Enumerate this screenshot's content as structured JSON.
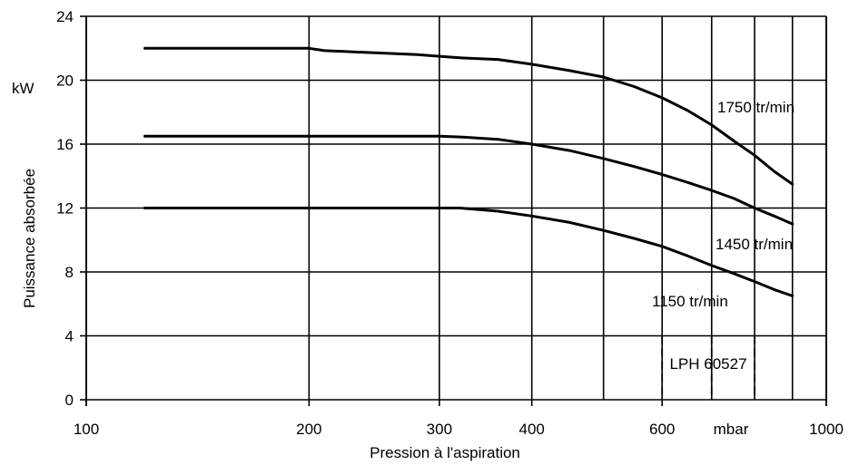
{
  "chart_data": {
    "type": "line",
    "title": "",
    "xlabel": "Pression à l'aspiration",
    "ylabel": "Puissance absorbée",
    "y_unit": "kW",
    "x_unit": "mbar",
    "x_scale": "log",
    "xlim": [
      100,
      1000
    ],
    "ylim": [
      0,
      24
    ],
    "x_ticks": [
      100,
      200,
      300,
      400,
      600,
      1000
    ],
    "x_tick_labels": [
      "100",
      "200",
      "300",
      "400",
      "600",
      "1000"
    ],
    "x_minor_gridlines": [
      500,
      700,
      800,
      900
    ],
    "y_ticks": [
      0,
      4,
      8,
      12,
      16,
      20,
      24
    ],
    "y_tick_labels": [
      "0",
      "4",
      "8",
      "12",
      "16",
      "20",
      "24"
    ],
    "grid": true,
    "annotation": "LPH 60527",
    "series": [
      {
        "name": "1750 tr/min",
        "x": [
          120,
          200,
          210,
          250,
          280,
          300,
          320,
          360,
          400,
          450,
          500,
          550,
          600,
          650,
          700,
          750,
          800,
          850,
          900
        ],
        "y": [
          22,
          22,
          21.85,
          21.7,
          21.6,
          21.5,
          21.4,
          21.3,
          21.0,
          20.6,
          20.2,
          19.6,
          18.9,
          18.1,
          17.2,
          16.2,
          15.3,
          14.3,
          13.5
        ]
      },
      {
        "name": "1450 tr/min",
        "x": [
          120,
          200,
          300,
          320,
          360,
          400,
          450,
          500,
          550,
          600,
          650,
          700,
          750,
          800,
          850,
          900
        ],
        "y": [
          16.5,
          16.5,
          16.5,
          16.45,
          16.3,
          16.0,
          15.6,
          15.1,
          14.6,
          14.1,
          13.6,
          13.1,
          12.6,
          12.0,
          11.5,
          11.0
        ]
      },
      {
        "name": "1150 tr/min",
        "x": [
          120,
          200,
          300,
          320,
          360,
          400,
          450,
          500,
          550,
          600,
          650,
          700,
          750,
          800,
          850,
          900
        ],
        "y": [
          12,
          12,
          12,
          12.0,
          11.8,
          11.5,
          11.1,
          10.6,
          10.1,
          9.6,
          9.0,
          8.4,
          7.9,
          7.4,
          6.9,
          6.5
        ]
      }
    ]
  }
}
